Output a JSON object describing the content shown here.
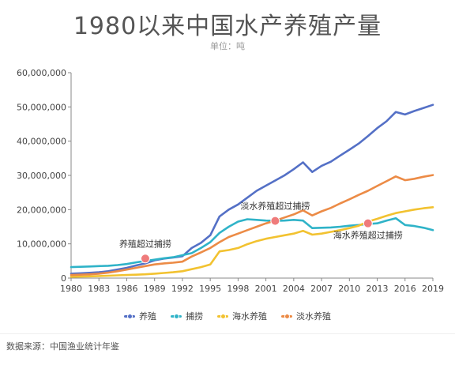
{
  "header": {
    "title": "1980以来中国水产养殖产量",
    "unit": "单位：吨"
  },
  "footer": {
    "source": "数据来源：中国渔业统计年鉴"
  },
  "chart_data": {
    "type": "line",
    "title": "1980以来中国水产养殖产量",
    "subtitle": "单位：吨",
    "xlabel": "",
    "ylabel": "",
    "xlim": [
      1980,
      2019
    ],
    "ylim": [
      0,
      60000000
    ],
    "x_ticks": [
      "1980",
      "1983",
      "1986",
      "1989",
      "1992",
      "1995",
      "1998",
      "2001",
      "2004",
      "2007",
      "2010",
      "2013",
      "2016",
      "2019"
    ],
    "y_ticks": [
      "0",
      "10,000,000",
      "20,000,000",
      "30,000,000",
      "40,000,000",
      "50,000,000",
      "60,000,000"
    ],
    "grid": false,
    "legend": "bottom",
    "x": [
      1980,
      1981,
      1982,
      1983,
      1984,
      1985,
      1986,
      1987,
      1988,
      1989,
      1990,
      1991,
      1992,
      1993,
      1994,
      1995,
      1996,
      1997,
      1998,
      1999,
      2000,
      2001,
      2002,
      2003,
      2004,
      2005,
      2006,
      2007,
      2008,
      2009,
      2010,
      2011,
      2012,
      2013,
      2014,
      2015,
      2016,
      2017,
      2018,
      2019
    ],
    "series": [
      {
        "name": "养殖",
        "color": "#5470c6",
        "values": [
          1300000,
          1400000,
          1550000,
          1700000,
          2000000,
          2500000,
          3000000,
          3700000,
          4300000,
          5200000,
          5700000,
          6000000,
          6400000,
          8800000,
          10300000,
          12500000,
          18000000,
          20000000,
          21500000,
          23500000,
          25500000,
          27000000,
          28500000,
          30000000,
          31800000,
          33800000,
          31000000,
          32800000,
          34000000,
          35800000,
          37500000,
          39300000,
          41500000,
          43800000,
          45800000,
          48500000,
          47800000,
          48800000,
          49700000,
          50600000
        ]
      },
      {
        "name": "捕捞",
        "color": "#2fb3c8",
        "values": [
          3200000,
          3300000,
          3400000,
          3500000,
          3600000,
          3800000,
          4100000,
          4600000,
          5000000,
          5400000,
          5800000,
          6100000,
          6700000,
          7300000,
          8800000,
          10500000,
          13200000,
          15000000,
          16500000,
          17200000,
          17000000,
          16800000,
          16700000,
          16800000,
          17000000,
          16800000,
          14600000,
          14700000,
          14800000,
          15000000,
          15300000,
          15500000,
          15800000,
          16000000,
          16800000,
          17500000,
          15500000,
          15200000,
          14700000,
          14000000
        ]
      },
      {
        "name": "海水养殖",
        "color": "#f2c230",
        "values": [
          400000,
          450000,
          500000,
          600000,
          700000,
          800000,
          900000,
          1000000,
          1100000,
          1300000,
          1500000,
          1700000,
          2000000,
          2600000,
          3200000,
          4000000,
          7800000,
          8200000,
          8800000,
          9900000,
          10800000,
          11500000,
          12000000,
          12500000,
          13000000,
          13800000,
          12700000,
          13000000,
          13500000,
          14000000,
          14600000,
          15300000,
          16500000,
          17300000,
          18200000,
          19000000,
          19500000,
          20000000,
          20400000,
          20700000
        ]
      },
      {
        "name": "淡水养殖",
        "color": "#ec8b46",
        "values": [
          900000,
          1000000,
          1100000,
          1300000,
          1600000,
          2000000,
          2500000,
          3000000,
          3500000,
          4000000,
          4300000,
          4500000,
          4800000,
          6300000,
          7500000,
          8800000,
          10500000,
          12000000,
          13000000,
          14000000,
          15000000,
          16000000,
          16800000,
          17700000,
          18600000,
          19800000,
          18300000,
          19500000,
          20500000,
          21800000,
          23000000,
          24300000,
          25500000,
          26900000,
          28300000,
          29700000,
          28600000,
          29000000,
          29600000,
          30100000
        ]
      }
    ],
    "annotations": [
      {
        "text": "养殖超过捕捞",
        "x": 1988,
        "y": 5700000,
        "position": "above"
      },
      {
        "text": "淡水养殖超过捕捞",
        "x": 2002,
        "y": 16700000,
        "position": "above"
      },
      {
        "text": "海水养殖超过捕捞",
        "x": 2012,
        "y": 16000000,
        "position": "below"
      }
    ]
  }
}
